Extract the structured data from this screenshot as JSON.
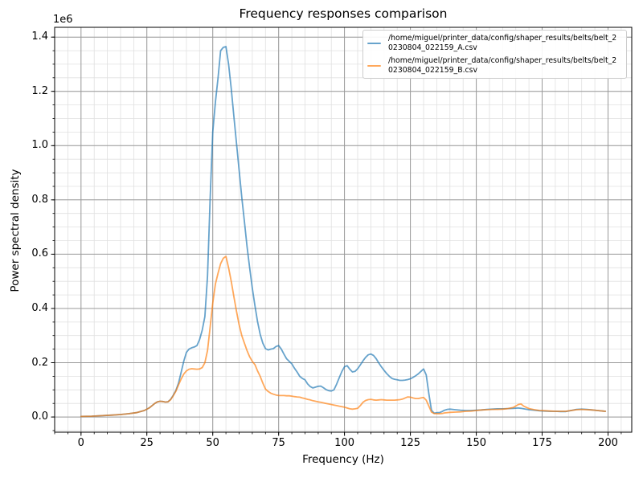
{
  "figure": {
    "background": "#ffffff"
  },
  "chart_data": {
    "type": "line",
    "title": "Frequency responses comparison",
    "xlabel": "Frequency (Hz)",
    "ylabel": "Power spectral density",
    "y_offset_text": "1e6",
    "y_unit_scale": 1000000,
    "xlim": [
      -10.0,
      209.0
    ],
    "ylim": [
      -0.056,
      1.436
    ],
    "x_major_ticks": [
      0,
      25,
      50,
      75,
      100,
      125,
      150,
      175,
      200
    ],
    "x_major_tick_labels": [
      "0",
      "25",
      "50",
      "75",
      "100",
      "125",
      "150",
      "175",
      "200"
    ],
    "x_minor_tick_step": 5,
    "y_major_ticks": [
      0,
      0.2,
      0.4,
      0.6,
      0.8,
      1.0,
      1.2,
      1.4
    ],
    "y_major_tick_labels": [
      "0.0",
      "0.2",
      "0.4",
      "0.6",
      "0.8",
      "1.0",
      "1.2",
      "1.4"
    ],
    "y_minor_tick_step": 0.05,
    "grid": {
      "major_color": "#999999",
      "minor_color": "#e0e0e0"
    },
    "axes_color": "#000000",
    "legend_position": "upper right",
    "series": [
      {
        "name": "/home/miguel/printer_data/config/shaper_results/belts/belt_20230804_022159_A.csv",
        "legend_label_lines": [
          "/home/miguel/printer_data/config/shaper_results/belts/belt_2",
          "0230804_022159_A.csv"
        ],
        "color": "#1f77b4",
        "alpha": 0.68,
        "points": [
          [
            0,
            0.002
          ],
          [
            4,
            0.003
          ],
          [
            8,
            0.005
          ],
          [
            12,
            0.007
          ],
          [
            15,
            0.009
          ],
          [
            18,
            0.012
          ],
          [
            21,
            0.016
          ],
          [
            24,
            0.024
          ],
          [
            26,
            0.034
          ],
          [
            28,
            0.05
          ],
          [
            29,
            0.056
          ],
          [
            30,
            0.058
          ],
          [
            31,
            0.057
          ],
          [
            32,
            0.055
          ],
          [
            33,
            0.056
          ],
          [
            34,
            0.065
          ],
          [
            35,
            0.08
          ],
          [
            36,
            0.098
          ],
          [
            37,
            0.125
          ],
          [
            38,
            0.165
          ],
          [
            39,
            0.205
          ],
          [
            40,
            0.238
          ],
          [
            41,
            0.25
          ],
          [
            42,
            0.255
          ],
          [
            43,
            0.258
          ],
          [
            44,
            0.263
          ],
          [
            45,
            0.285
          ],
          [
            46,
            0.32
          ],
          [
            47,
            0.37
          ],
          [
            48,
            0.52
          ],
          [
            49,
            0.8
          ],
          [
            50,
            1.05
          ],
          [
            51,
            1.16
          ],
          [
            52,
            1.25
          ],
          [
            53,
            1.35
          ],
          [
            54,
            1.362
          ],
          [
            55,
            1.365
          ],
          [
            56,
            1.3
          ],
          [
            57,
            1.21
          ],
          [
            58,
            1.11
          ],
          [
            59,
            1.01
          ],
          [
            60,
            0.91
          ],
          [
            61,
            0.81
          ],
          [
            62,
            0.72
          ],
          [
            63,
            0.63
          ],
          [
            64,
            0.55
          ],
          [
            65,
            0.475
          ],
          [
            66,
            0.41
          ],
          [
            67,
            0.352
          ],
          [
            68,
            0.305
          ],
          [
            69,
            0.272
          ],
          [
            70,
            0.252
          ],
          [
            71,
            0.247
          ],
          [
            72,
            0.25
          ],
          [
            73,
            0.252
          ],
          [
            74,
            0.26
          ],
          [
            75,
            0.263
          ],
          [
            76,
            0.25
          ],
          [
            77,
            0.232
          ],
          [
            78,
            0.215
          ],
          [
            79,
            0.205
          ],
          [
            80,
            0.196
          ],
          [
            81,
            0.18
          ],
          [
            82,
            0.166
          ],
          [
            83,
            0.15
          ],
          [
            84,
            0.142
          ],
          [
            85,
            0.137
          ],
          [
            86,
            0.122
          ],
          [
            87,
            0.112
          ],
          [
            88,
            0.107
          ],
          [
            89,
            0.11
          ],
          [
            90,
            0.113
          ],
          [
            91,
            0.114
          ],
          [
            92,
            0.108
          ],
          [
            93,
            0.101
          ],
          [
            94,
            0.097
          ],
          [
            95,
            0.096
          ],
          [
            96,
            0.1
          ],
          [
            97,
            0.121
          ],
          [
            98,
            0.145
          ],
          [
            99,
            0.168
          ],
          [
            100,
            0.185
          ],
          [
            101,
            0.189
          ],
          [
            102,
            0.176
          ],
          [
            103,
            0.166
          ],
          [
            104,
            0.168
          ],
          [
            105,
            0.178
          ],
          [
            106,
            0.192
          ],
          [
            107,
            0.207
          ],
          [
            108,
            0.22
          ],
          [
            109,
            0.229
          ],
          [
            110,
            0.232
          ],
          [
            111,
            0.227
          ],
          [
            112,
            0.215
          ],
          [
            113,
            0.199
          ],
          [
            114,
            0.185
          ],
          [
            115,
            0.172
          ],
          [
            116,
            0.16
          ],
          [
            117,
            0.15
          ],
          [
            118,
            0.142
          ],
          [
            119,
            0.139
          ],
          [
            120,
            0.137
          ],
          [
            121,
            0.135
          ],
          [
            122,
            0.135
          ],
          [
            123,
            0.136
          ],
          [
            124,
            0.138
          ],
          [
            125,
            0.141
          ],
          [
            126,
            0.146
          ],
          [
            127,
            0.152
          ],
          [
            128,
            0.159
          ],
          [
            129,
            0.168
          ],
          [
            130,
            0.177
          ],
          [
            131,
            0.155
          ],
          [
            132,
            0.085
          ],
          [
            133,
            0.025
          ],
          [
            134,
            0.014
          ],
          [
            135,
            0.016
          ],
          [
            136,
            0.016
          ],
          [
            137,
            0.02
          ],
          [
            138,
            0.025
          ],
          [
            139,
            0.028
          ],
          [
            140,
            0.029
          ],
          [
            142,
            0.027
          ],
          [
            144,
            0.025
          ],
          [
            146,
            0.024
          ],
          [
            148,
            0.024
          ],
          [
            150,
            0.025
          ],
          [
            152,
            0.026
          ],
          [
            154,
            0.028
          ],
          [
            156,
            0.029
          ],
          [
            158,
            0.03
          ],
          [
            160,
            0.03
          ],
          [
            162,
            0.031
          ],
          [
            164,
            0.032
          ],
          [
            166,
            0.033
          ],
          [
            167,
            0.032
          ],
          [
            168,
            0.03
          ],
          [
            170,
            0.027
          ],
          [
            172,
            0.025
          ],
          [
            174,
            0.023
          ],
          [
            176,
            0.022
          ],
          [
            178,
            0.021
          ],
          [
            180,
            0.021
          ],
          [
            182,
            0.02
          ],
          [
            184,
            0.02
          ],
          [
            186,
            0.024
          ],
          [
            188,
            0.028
          ],
          [
            190,
            0.029
          ],
          [
            192,
            0.028
          ],
          [
            194,
            0.026
          ],
          [
            196,
            0.024
          ],
          [
            198,
            0.022
          ],
          [
            199,
            0.021
          ]
        ]
      },
      {
        "name": "/home/miguel/printer_data/config/shaper_results/belts/belt_20230804_022159_B.csv",
        "legend_label_lines": [
          "/home/miguel/printer_data/config/shaper_results/belts/belt_2",
          "0230804_022159_B.csv"
        ],
        "color": "#ff7f0e",
        "alpha": 0.68,
        "points": [
          [
            0,
            0.002
          ],
          [
            4,
            0.003
          ],
          [
            8,
            0.005
          ],
          [
            12,
            0.007
          ],
          [
            15,
            0.009
          ],
          [
            18,
            0.012
          ],
          [
            21,
            0.016
          ],
          [
            24,
            0.024
          ],
          [
            26,
            0.034
          ],
          [
            28,
            0.05
          ],
          [
            29,
            0.056
          ],
          [
            30,
            0.058
          ],
          [
            31,
            0.057
          ],
          [
            32,
            0.055
          ],
          [
            33,
            0.056
          ],
          [
            34,
            0.064
          ],
          [
            35,
            0.078
          ],
          [
            36,
            0.095
          ],
          [
            37,
            0.118
          ],
          [
            38,
            0.14
          ],
          [
            39,
            0.158
          ],
          [
            40,
            0.17
          ],
          [
            41,
            0.176
          ],
          [
            42,
            0.178
          ],
          [
            43,
            0.177
          ],
          [
            44,
            0.176
          ],
          [
            45,
            0.177
          ],
          [
            46,
            0.182
          ],
          [
            47,
            0.2
          ],
          [
            48,
            0.245
          ],
          [
            49,
            0.33
          ],
          [
            50,
            0.42
          ],
          [
            51,
            0.49
          ],
          [
            52,
            0.53
          ],
          [
            53,
            0.565
          ],
          [
            54,
            0.585
          ],
          [
            55,
            0.592
          ],
          [
            56,
            0.55
          ],
          [
            57,
            0.5
          ],
          [
            58,
            0.445
          ],
          [
            59,
            0.39
          ],
          [
            60,
            0.34
          ],
          [
            61,
            0.3
          ],
          [
            62,
            0.272
          ],
          [
            63,
            0.245
          ],
          [
            64,
            0.222
          ],
          [
            65,
            0.205
          ],
          [
            66,
            0.193
          ],
          [
            67,
            0.17
          ],
          [
            68,
            0.15
          ],
          [
            69,
            0.125
          ],
          [
            70,
            0.103
          ],
          [
            71,
            0.094
          ],
          [
            72,
            0.088
          ],
          [
            73,
            0.084
          ],
          [
            74,
            0.081
          ],
          [
            75,
            0.079
          ],
          [
            76,
            0.079
          ],
          [
            77,
            0.079
          ],
          [
            78,
            0.078
          ],
          [
            79,
            0.078
          ],
          [
            80,
            0.077
          ],
          [
            81,
            0.075
          ],
          [
            82,
            0.074
          ],
          [
            83,
            0.073
          ],
          [
            84,
            0.07
          ],
          [
            85,
            0.068
          ],
          [
            86,
            0.065
          ],
          [
            87,
            0.063
          ],
          [
            88,
            0.06
          ],
          [
            89,
            0.058
          ],
          [
            90,
            0.056
          ],
          [
            91,
            0.054
          ],
          [
            92,
            0.052
          ],
          [
            93,
            0.05
          ],
          [
            94,
            0.048
          ],
          [
            95,
            0.046
          ],
          [
            96,
            0.044
          ],
          [
            97,
            0.042
          ],
          [
            98,
            0.04
          ],
          [
            99,
            0.038
          ],
          [
            100,
            0.036
          ],
          [
            101,
            0.033
          ],
          [
            102,
            0.03
          ],
          [
            103,
            0.029
          ],
          [
            104,
            0.03
          ],
          [
            105,
            0.032
          ],
          [
            106,
            0.042
          ],
          [
            107,
            0.054
          ],
          [
            108,
            0.061
          ],
          [
            109,
            0.064
          ],
          [
            110,
            0.065
          ],
          [
            111,
            0.063
          ],
          [
            112,
            0.062
          ],
          [
            113,
            0.063
          ],
          [
            114,
            0.064
          ],
          [
            115,
            0.063
          ],
          [
            116,
            0.062
          ],
          [
            117,
            0.062
          ],
          [
            118,
            0.062
          ],
          [
            119,
            0.062
          ],
          [
            120,
            0.063
          ],
          [
            121,
            0.064
          ],
          [
            122,
            0.066
          ],
          [
            123,
            0.07
          ],
          [
            124,
            0.074
          ],
          [
            125,
            0.073
          ],
          [
            126,
            0.07
          ],
          [
            127,
            0.068
          ],
          [
            128,
            0.068
          ],
          [
            129,
            0.07
          ],
          [
            130,
            0.072
          ],
          [
            131,
            0.062
          ],
          [
            132,
            0.04
          ],
          [
            133,
            0.018
          ],
          [
            134,
            0.013
          ],
          [
            135,
            0.012
          ],
          [
            136,
            0.012
          ],
          [
            137,
            0.013
          ],
          [
            138,
            0.015
          ],
          [
            140,
            0.017
          ],
          [
            142,
            0.018
          ],
          [
            144,
            0.019
          ],
          [
            146,
            0.021
          ],
          [
            148,
            0.022
          ],
          [
            150,
            0.024
          ],
          [
            152,
            0.026
          ],
          [
            154,
            0.027
          ],
          [
            156,
            0.028
          ],
          [
            158,
            0.028
          ],
          [
            160,
            0.029
          ],
          [
            162,
            0.031
          ],
          [
            164,
            0.035
          ],
          [
            166,
            0.046
          ],
          [
            167,
            0.048
          ],
          [
            168,
            0.04
          ],
          [
            170,
            0.031
          ],
          [
            172,
            0.027
          ],
          [
            174,
            0.024
          ],
          [
            176,
            0.023
          ],
          [
            178,
            0.022
          ],
          [
            180,
            0.021
          ],
          [
            182,
            0.021
          ],
          [
            184,
            0.021
          ],
          [
            186,
            0.024
          ],
          [
            188,
            0.027
          ],
          [
            190,
            0.028
          ],
          [
            192,
            0.027
          ],
          [
            194,
            0.026
          ],
          [
            196,
            0.024
          ],
          [
            198,
            0.022
          ],
          [
            199,
            0.021
          ]
        ]
      }
    ]
  }
}
